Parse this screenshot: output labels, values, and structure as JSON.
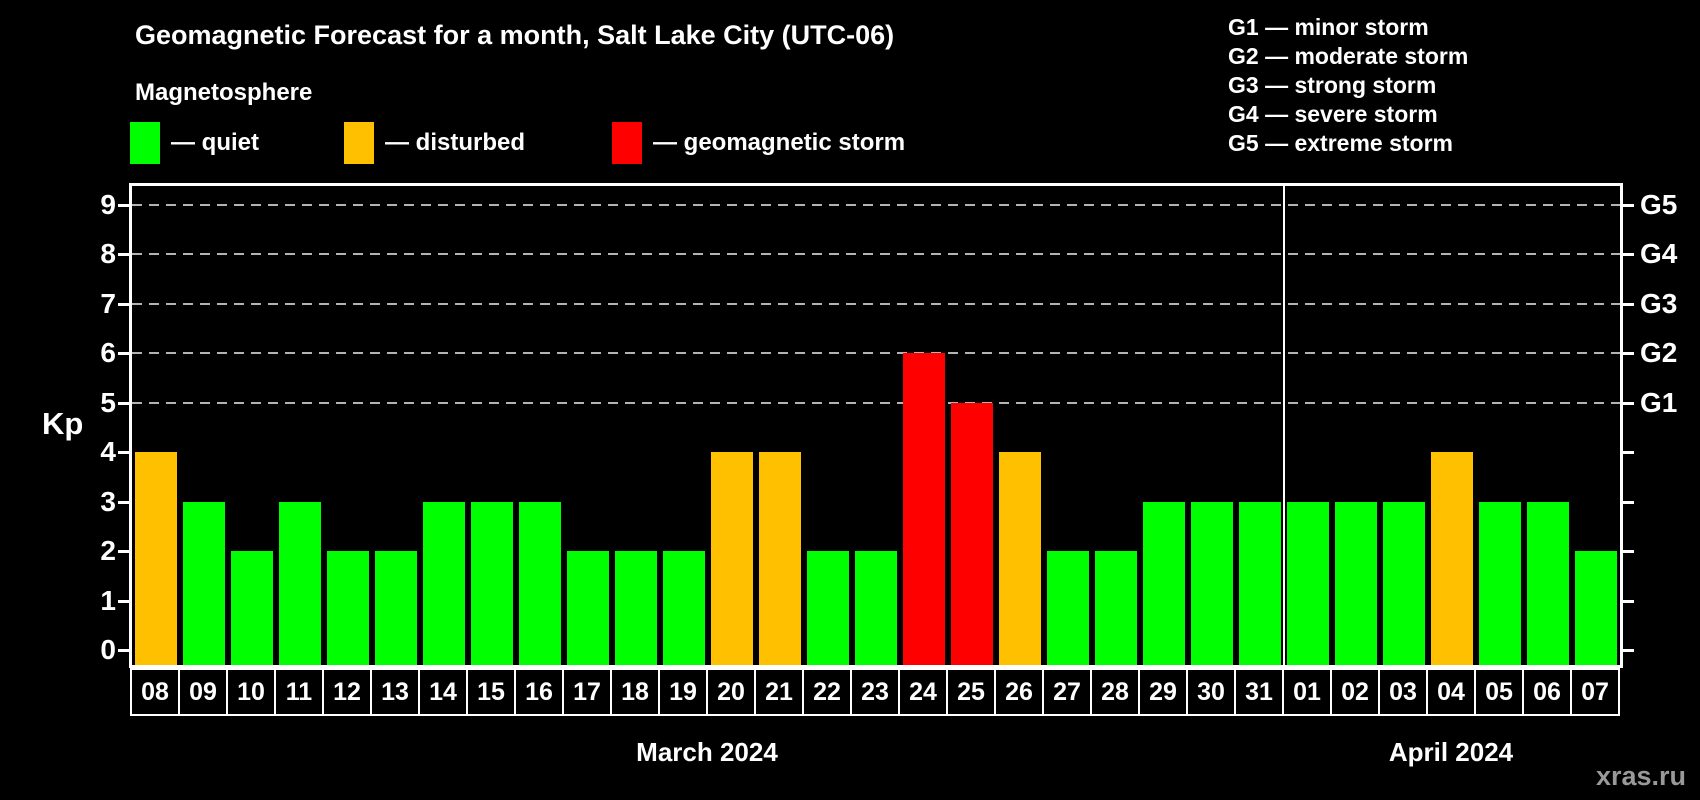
{
  "title": "Geomagnetic Forecast for a month, Salt Lake City (UTC-06)",
  "subtitle": "Magnetosphere",
  "legend": {
    "items": [
      {
        "key": "quiet",
        "label": "— quiet",
        "color": "#00ff00"
      },
      {
        "key": "disturbed",
        "label": "— disturbed",
        "color": "#ffc000"
      },
      {
        "key": "storm",
        "label": "— geomagnetic storm",
        "color": "#ff0000"
      }
    ]
  },
  "g_scale": [
    {
      "code": "G1",
      "label": "G1 — minor storm",
      "kp": 5
    },
    {
      "code": "G2",
      "label": "G2 — moderate storm",
      "kp": 6
    },
    {
      "code": "G3",
      "label": "G3 — strong storm",
      "kp": 7
    },
    {
      "code": "G4",
      "label": "G4 — severe storm",
      "kp": 8
    },
    {
      "code": "G5",
      "label": "G5 — extreme storm",
      "kp": 9
    }
  ],
  "watermark": "xras.ru",
  "colors": {
    "background": "#000000",
    "axis": "#ffffff",
    "grid": "#b3b3b3",
    "watermark_text": "#999999"
  },
  "chart_data": {
    "type": "bar",
    "title": "Geomagnetic Forecast for a month, Salt Lake City (UTC-06)",
    "xlabel": "",
    "ylabel": "Kp",
    "ylim": [
      0,
      9.5
    ],
    "yticks": [
      0,
      1,
      2,
      3,
      4,
      5,
      6,
      7,
      8,
      9
    ],
    "grid": "dashed horizontal lines at Kp 5-9 (G1-G5 levels)",
    "legend_position": "top-left",
    "months": [
      {
        "label": "March 2024",
        "days": 24
      },
      {
        "label": "April 2024",
        "days": 7
      }
    ],
    "categories": [
      "08",
      "09",
      "10",
      "11",
      "12",
      "13",
      "14",
      "15",
      "16",
      "17",
      "18",
      "19",
      "20",
      "21",
      "22",
      "23",
      "24",
      "25",
      "26",
      "27",
      "28",
      "29",
      "30",
      "31",
      "01",
      "02",
      "03",
      "04",
      "05",
      "06",
      "07"
    ],
    "values": [
      4,
      3,
      2,
      3,
      2,
      2,
      3,
      3,
      3,
      2,
      2,
      2,
      4,
      4,
      2,
      2,
      6,
      5,
      4,
      2,
      2,
      3,
      3,
      3,
      3,
      3,
      3,
      4,
      3,
      3,
      2
    ],
    "statuses": [
      "disturbed",
      "quiet",
      "quiet",
      "quiet",
      "quiet",
      "quiet",
      "quiet",
      "quiet",
      "quiet",
      "quiet",
      "quiet",
      "quiet",
      "disturbed",
      "disturbed",
      "quiet",
      "quiet",
      "storm",
      "storm",
      "disturbed",
      "quiet",
      "quiet",
      "quiet",
      "quiet",
      "quiet",
      "quiet",
      "quiet",
      "quiet",
      "disturbed",
      "quiet",
      "quiet",
      "quiet"
    ],
    "colors": {
      "quiet": "#00ff00",
      "disturbed": "#ffc000",
      "storm": "#ff0000"
    }
  }
}
